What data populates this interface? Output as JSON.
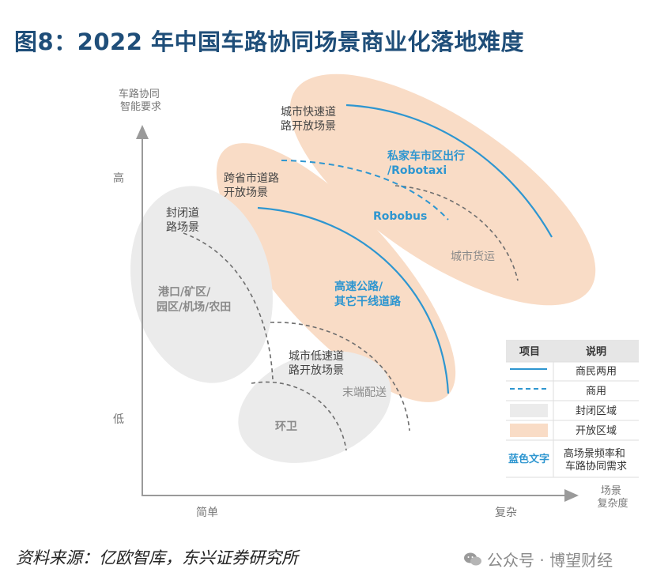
{
  "title": "图8：2022 年中国车路协同场景商业化落地难度",
  "axes": {
    "y_title_line1": "车路协同",
    "y_title_line2": "智能要求",
    "y_high": "高",
    "y_low": "低",
    "x_title_line1": "场景",
    "x_title_line2": "复杂度",
    "x_simple": "简单",
    "x_complex": "复杂"
  },
  "regions": {
    "closed_road_line1": "封闭道",
    "closed_road_line2": "路场景",
    "port_line1": "港口/矿区/",
    "port_line2": "园区/机场/农田",
    "lowspeed_line1": "城市低速道",
    "lowspeed_line2": "路开放场景",
    "last_mile": "末端配送",
    "sanitation": "环卫",
    "intercity_line1": "跨省市道路",
    "intercity_line2": "开放场景",
    "highway_line1": "高速公路/",
    "highway_line2": "其它干线道路",
    "urban_fast_line1": "城市快速道",
    "urban_fast_line2": "路开放场景",
    "private_car_line1": "私家车市区出行",
    "private_car_line2": "/Robotaxi",
    "robobus": "Robobus",
    "urban_freight": "城市货运"
  },
  "legend": {
    "header_item": "项目",
    "header_desc": "说明",
    "row1": "商民两用",
    "row2": "商用",
    "row3": "封闭区域",
    "row4": "开放区域",
    "row5_key": "蓝色文字",
    "row5_line1": "高场景频率和",
    "row5_line2": "车路协同需求"
  },
  "colors": {
    "title": "#1f4e79",
    "open_area": "#f9dcc6",
    "closed_area": "#ebebeb",
    "blue": "#2e96d0",
    "dashed_gray": "#6e6e6e"
  },
  "source": "资料来源：亿欧智库，东兴证券研究所",
  "watermark": "公众号 · 博望财经"
}
